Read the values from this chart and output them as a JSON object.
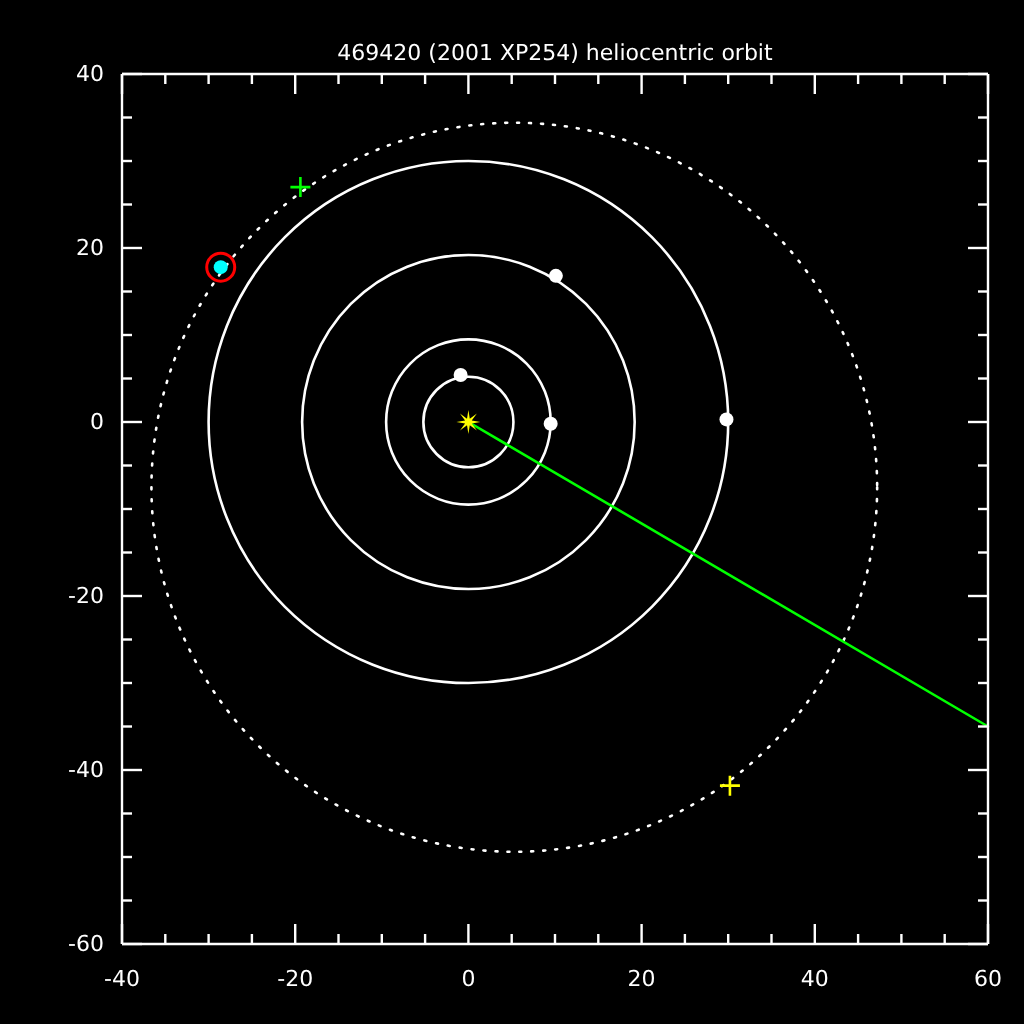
{
  "chart_data": {
    "type": "line",
    "title": "469420 (2001 XP254) heliocentric orbit",
    "xlim": [
      -40,
      60
    ],
    "ylim": [
      -60,
      40
    ],
    "xticks": [
      -40,
      {
        "value": -35,
        "label": null
      },
      {
        "value": -30,
        "label": null
      },
      {
        "value": -25,
        "label": null
      },
      -20,
      {
        "value": -15,
        "label": null
      },
      {
        "value": -10,
        "label": null
      },
      {
        "value": -5,
        "label": null
      },
      0,
      {
        "value": 5,
        "label": null
      },
      {
        "value": 10,
        "label": null
      },
      {
        "value": 15,
        "label": null
      },
      20,
      {
        "value": 25,
        "label": null
      },
      {
        "value": 30,
        "label": null
      },
      {
        "value": 35,
        "label": null
      },
      40,
      {
        "value": 45,
        "label": null
      },
      {
        "value": 50,
        "label": null
      },
      {
        "value": 55,
        "label": null
      },
      60
    ],
    "yticks": [
      -60,
      {
        "value": -55,
        "label": null
      },
      {
        "value": -50,
        "label": null
      },
      {
        "value": -45,
        "label": null
      },
      -40,
      {
        "value": -35,
        "label": null
      },
      {
        "value": -30,
        "label": null
      },
      {
        "value": -25,
        "label": null
      },
      -20,
      {
        "value": -15,
        "label": null
      },
      {
        "value": -10,
        "label": null
      },
      {
        "value": -5,
        "label": null
      },
      0,
      {
        "value": 5,
        "label": null
      },
      {
        "value": 10,
        "label": null
      },
      {
        "value": 15,
        "label": null
      },
      20,
      {
        "value": 25,
        "label": null
      },
      {
        "value": 30,
        "label": null
      },
      {
        "value": 35,
        "label": null
      },
      40
    ],
    "grid": false,
    "series": [
      {
        "type": "line",
        "color": "#00ff00",
        "line_style": "solid",
        "x": [
          0,
          60
        ],
        "values": [
          0,
          -35
        ]
      },
      {
        "type": "scatter",
        "color": "#ffffff",
        "marker": "circle",
        "x": [
          -0.9,
          9.5,
          10.1,
          29.8
        ],
        "values": [
          5.4,
          -0.2,
          16.8,
          0.3
        ]
      },
      {
        "type": "bubble",
        "color": "#ff0000",
        "x": [
          -28.6
        ],
        "values": [
          17.8
        ],
        "sizes": [
          1
        ]
      },
      {
        "type": "scatter",
        "color": "#00ffff",
        "marker": "circle",
        "x": [
          -28.6
        ],
        "values": [
          17.8
        ]
      },
      {
        "type": "scatter",
        "color": "#00ff00",
        "marker": "cross",
        "x": [
          -19.4
        ],
        "values": [
          27
        ]
      },
      {
        "type": "scatter",
        "color": "#ffff00",
        "marker": "cross",
        "x": [
          30.2
        ],
        "values": [
          -41.8
        ]
      },
      {
        "type": "scatter",
        "color": "#ffff00",
        "marker": "star",
        "x": [
          0
        ],
        "values": [
          0
        ]
      }
    ]
  }
}
